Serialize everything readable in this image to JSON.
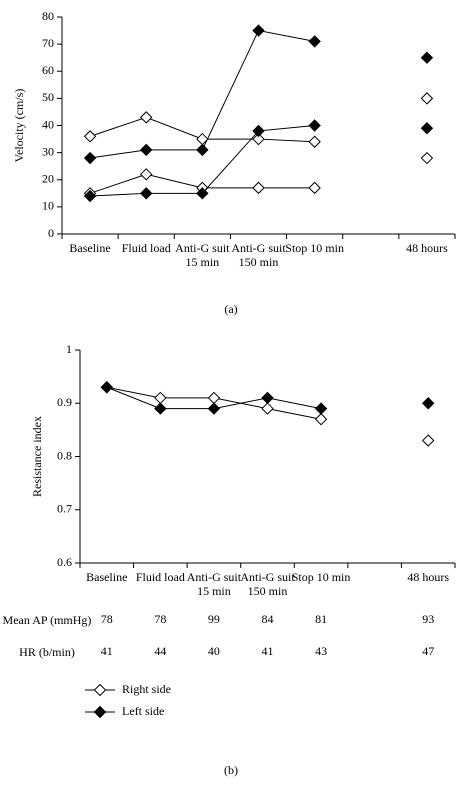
{
  "chart_data": [
    {
      "type": "line",
      "caption": "(a)",
      "ylabel": "Velocity (cm/s)",
      "categories": [
        "Baseline",
        "Fluid load",
        "Anti-G suit 15 min",
        "Anti-G suit 150 min",
        "Stop 10 min",
        null,
        "48 hours"
      ],
      "ylim": [
        0,
        80
      ],
      "yticks": [
        0,
        10,
        20,
        30,
        40,
        50,
        60,
        70,
        80
      ],
      "series": [
        {
          "color": "#000000",
          "marker": "open",
          "values": [
            36,
            43,
            35,
            35,
            34,
            null,
            50
          ]
        },
        {
          "color": "#000000",
          "marker": "open",
          "values": [
            15,
            22,
            17,
            17,
            17,
            null,
            28
          ]
        },
        {
          "color": "#000000",
          "marker": "filled",
          "values": [
            28,
            31,
            31,
            75,
            71,
            null,
            65
          ]
        },
        {
          "color": "#000000",
          "marker": "filled",
          "values": [
            14,
            15,
            15,
            38,
            40,
            null,
            39
          ]
        }
      ]
    },
    {
      "type": "line",
      "caption": "(b)",
      "ylabel": "Resistance index",
      "categories": [
        "Baseline",
        "Fluid load",
        "Anti-G suit 15 min",
        "Anti-G suit 150 min",
        "Stop 10 min",
        null,
        "48 hours"
      ],
      "ylim": [
        0.6,
        1
      ],
      "yticks": [
        0.6,
        0.7,
        0.8,
        0.9,
        1
      ],
      "series": [
        {
          "name": "Right side",
          "color": "#000000",
          "marker": "open",
          "values": [
            0.93,
            0.91,
            0.91,
            0.89,
            0.87,
            null,
            0.83
          ]
        },
        {
          "name": "Left side",
          "color": "#000000",
          "marker": "filled",
          "values": [
            0.93,
            0.89,
            0.89,
            0.91,
            0.89,
            null,
            0.9
          ]
        }
      ],
      "legend": "below",
      "table_rows": [
        {
          "label": "Mean AP (mmHg)",
          "values": [
            78,
            78,
            99,
            84,
            81,
            null,
            93
          ]
        },
        {
          "label": "HR (b/min)",
          "values": [
            41,
            44,
            40,
            41,
            43,
            null,
            47
          ]
        }
      ]
    }
  ]
}
